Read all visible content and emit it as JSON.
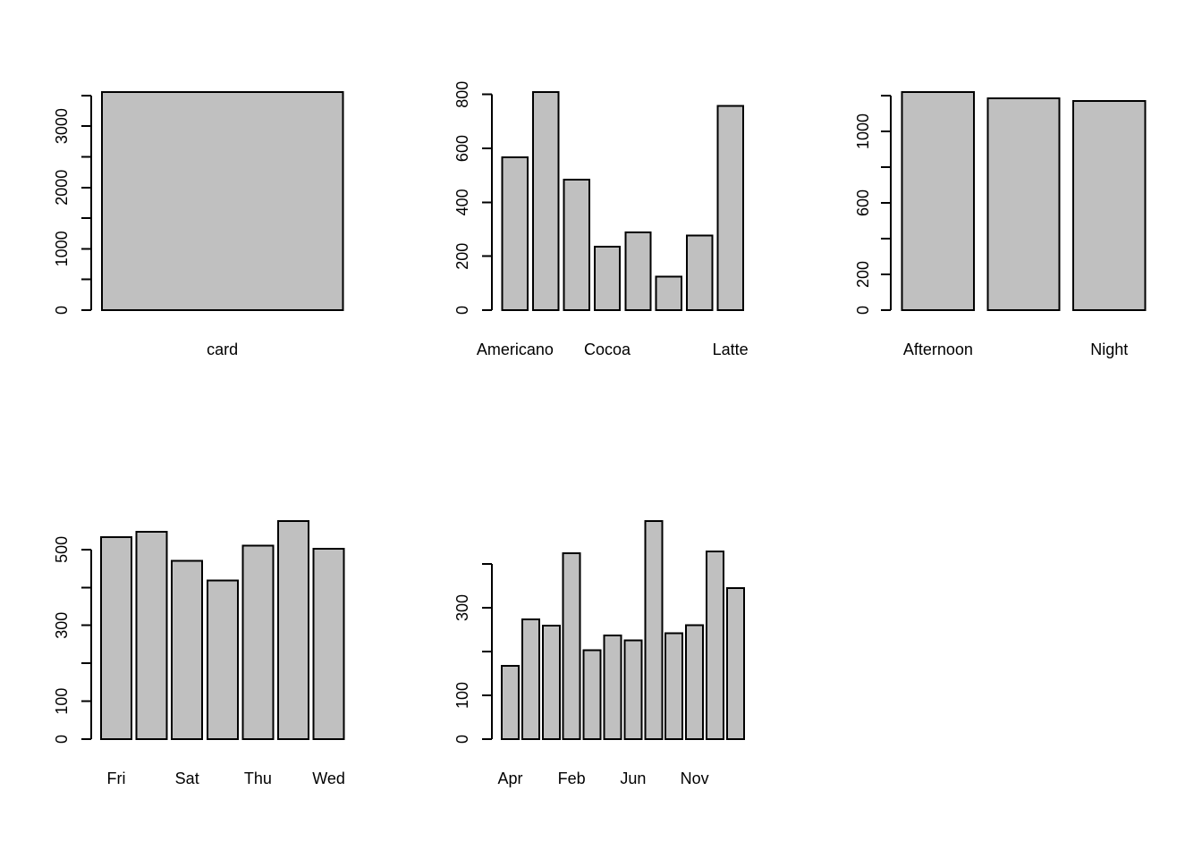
{
  "figure": {
    "background": "#ffffff",
    "bar_fill": "#c0c0c0",
    "bar_stroke": "#000000",
    "axis_color": "#000000",
    "text_color": "#000000",
    "grid_layout": "2 rows x 3 columns",
    "empty_cell": "bottom-right"
  },
  "chart_data": [
    {
      "id": "payment-type",
      "position": "top-left",
      "type": "bar",
      "title": "",
      "xlabel": "",
      "ylabel": "",
      "categories": [
        "card"
      ],
      "values": [
        3556
      ],
      "ylim": [
        0,
        3556
      ],
      "yticks": [
        0,
        500,
        1000,
        1500,
        2000,
        2500,
        3000,
        3500
      ],
      "ytick_labels": [
        "0",
        "",
        "1000",
        "",
        "2000",
        "",
        "3000",
        ""
      ],
      "grid_lines": false,
      "legend": null
    },
    {
      "id": "coffee-type",
      "position": "top-middle",
      "type": "bar",
      "title": "",
      "xlabel": "",
      "ylabel": "",
      "categories": [
        "Americano",
        "",
        "",
        "Cocoa",
        "",
        "",
        "",
        "Latte"
      ],
      "values": [
        567,
        809,
        484,
        236,
        288,
        125,
        277,
        757
      ],
      "ylim": [
        0,
        809
      ],
      "yticks": [
        0,
        200,
        400,
        600,
        800
      ],
      "ytick_labels": [
        "0",
        "200",
        "400",
        "600",
        "800"
      ],
      "grid_lines": false,
      "legend": null
    },
    {
      "id": "time-of-day",
      "position": "top-right",
      "type": "bar",
      "title": "",
      "xlabel": "",
      "ylabel": "",
      "categories": [
        "Afternoon",
        "",
        "Night"
      ],
      "values": [
        1220,
        1185,
        1170
      ],
      "ylim": [
        0,
        1220
      ],
      "yticks": [
        0,
        200,
        400,
        600,
        800,
        1000,
        1200
      ],
      "ytick_labels": [
        "0",
        "200",
        "",
        "600",
        "",
        "1000",
        ""
      ],
      "grid_lines": false,
      "legend": null
    },
    {
      "id": "weekday",
      "position": "bottom-left",
      "type": "bar",
      "title": "",
      "xlabel": "",
      "ylabel": "",
      "categories": [
        "Fri",
        "",
        "Sat",
        "",
        "Thu",
        "",
        "Wed"
      ],
      "values": [
        532,
        547,
        470,
        418,
        510,
        575,
        502
      ],
      "ylim": [
        0,
        575
      ],
      "yticks": [
        0,
        100,
        200,
        300,
        400,
        500
      ],
      "ytick_labels": [
        "0",
        "100",
        "",
        "300",
        "",
        "500"
      ],
      "grid_lines": false,
      "legend": null
    },
    {
      "id": "month",
      "position": "bottom-middle",
      "type": "bar",
      "title": "",
      "xlabel": "",
      "ylabel": "",
      "categories": [
        "Apr",
        "",
        "",
        "Feb",
        "",
        "",
        "Jun",
        "",
        "",
        "Nov",
        "",
        ""
      ],
      "values": [
        167,
        273,
        259,
        425,
        203,
        237,
        226,
        498,
        242,
        260,
        429,
        345
      ],
      "ylim": [
        0,
        498
      ],
      "yticks": [
        0,
        100,
        200,
        300,
        400
      ],
      "ytick_labels": [
        "0",
        "100",
        "",
        "300",
        ""
      ],
      "grid_lines": false,
      "legend": null
    }
  ]
}
